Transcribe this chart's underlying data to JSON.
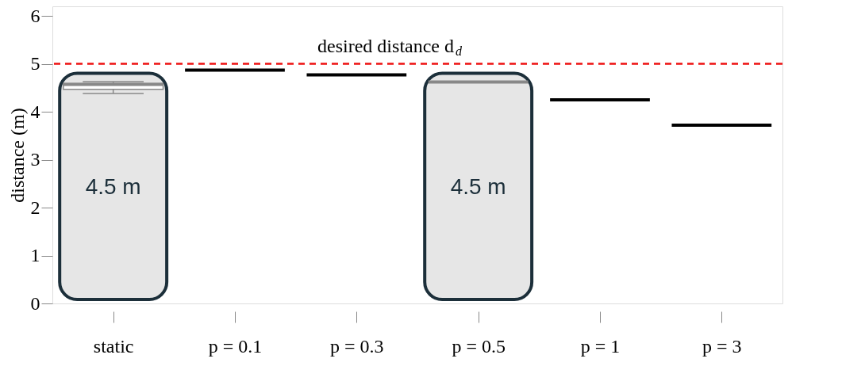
{
  "chart_data": {
    "type": "box",
    "ylabel": "distance (m)",
    "categories": [
      "static",
      "p = 0.1",
      "p = 0.3",
      "p = 0.5",
      "p = 1",
      "p = 3"
    ],
    "boxes": [
      {
        "low": 4.38,
        "q1": 4.47,
        "median": 4.57,
        "q3": 4.59,
        "high": 4.63
      },
      {
        "low": 4.87,
        "q1": 4.87,
        "median": 4.87,
        "q3": 4.87,
        "high": 4.87
      },
      {
        "low": 4.77,
        "q1": 4.77,
        "median": 4.77,
        "q3": 4.77,
        "high": 4.77
      },
      {
        "low": 4.62,
        "q1": 4.62,
        "median": 4.62,
        "q3": 4.62,
        "high": 4.62
      },
      {
        "low": 4.25,
        "q1": 4.25,
        "median": 4.25,
        "q3": 4.25,
        "high": 4.25
      },
      {
        "low": 3.72,
        "q1": 3.72,
        "median": 3.72,
        "q3": 3.72,
        "high": 3.72
      }
    ],
    "colors": [
      "#888888",
      "#000000",
      "#000000",
      "#888888",
      "#000000",
      "#000000"
    ],
    "ylim": [
      0,
      6.2
    ],
    "yticks": [
      0,
      1,
      2,
      3,
      4,
      5,
      6
    ],
    "grid": false,
    "ref_lines": [
      {
        "axis": "y",
        "value": 5,
        "label": "desired distance d$_{d}$",
        "color": "#ee1111",
        "line_style": "dashed"
      }
    ],
    "annotations": [
      "4.5 m",
      "4.5 m"
    ]
  }
}
